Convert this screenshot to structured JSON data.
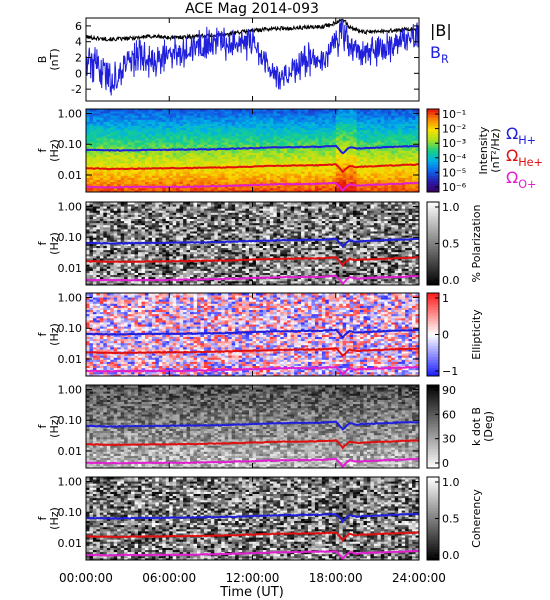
{
  "chart_data": {
    "type": "heatmap",
    "title": "ACE Mag 2014-093",
    "xlabel": "Time (UT)",
    "x_ticks": [
      "00:00:00",
      "06:00:00",
      "12:00:00",
      "18:00:00",
      "24:00:00"
    ],
    "x_range_hours": [
      0,
      24
    ],
    "panels": [
      {
        "id": "field",
        "type": "line",
        "ylabel": "B",
        "yunit": "(nT)",
        "ylim": [
          -3.5,
          7
        ],
        "y_ticks": [
          "-2",
          "0",
          "2",
          "4",
          "6"
        ],
        "legend": [
          {
            "label": "|B|",
            "color": "#000000"
          },
          {
            "label": "B",
            "sub": "R",
            "color": "#1f1fdc"
          }
        ],
        "series": [
          {
            "name": "|B|",
            "color": "#000000",
            "x": [
              0,
              1,
              2,
              3,
              4,
              5,
              6,
              7,
              8,
              9,
              10,
              11,
              12,
              13,
              14,
              15,
              16,
              17,
              18,
              18.5,
              19,
              20,
              21,
              22,
              23,
              24
            ],
            "y": [
              4.6,
              4.4,
              4.3,
              4.4,
              4.6,
              4.7,
              4.5,
              4.6,
              4.7,
              4.8,
              4.9,
              5.2,
              5.4,
              5.6,
              5.7,
              5.7,
              5.8,
              5.9,
              6.4,
              6.9,
              5.8,
              5.2,
              5.3,
              5.4,
              5.5,
              5.6
            ]
          },
          {
            "name": "B",
            "color": "#1f1fdc",
            "x": [
              0,
              1,
              2,
              3,
              4,
              5,
              6,
              7,
              8,
              9,
              10,
              11,
              12,
              13,
              14,
              15,
              16,
              17,
              18,
              18.5,
              19,
              20,
              21,
              22,
              23,
              24
            ],
            "y": [
              2.0,
              0.5,
              -1.0,
              1.5,
              2.5,
              1.0,
              2.5,
              3.0,
              3.5,
              3.8,
              4.0,
              3.5,
              4.2,
              1.0,
              -0.5,
              0.5,
              2.0,
              1.5,
              4.0,
              5.5,
              3.0,
              2.5,
              3.0,
              3.6,
              4.2,
              4.4
            ]
          }
        ]
      },
      {
        "id": "intensity",
        "type": "heatmap",
        "ylabel": "f",
        "yunit": "(Hz)",
        "ylim": [
          0.0028,
          1.4
        ],
        "y_scale": "log",
        "y_ticks": [
          "1.00",
          "0.10",
          "0.01"
        ],
        "colorbar": {
          "title": "Intensity",
          "unit": "(nT²/Hz)",
          "ticks": [
            "10⁻¹",
            "10⁻²",
            "10⁻³",
            "10⁻⁴",
            "10⁻⁵",
            "10⁻⁶"
          ],
          "range": [
            -6.5,
            -0.5
          ],
          "colors": [
            "#3a0060",
            "#2a1aa8",
            "#1060e8",
            "#00b0e8",
            "#18d088",
            "#a8e020",
            "#f8e000",
            "#f88800",
            "#e81010"
          ]
        },
        "curve_legend": [
          {
            "label": "Ω",
            "sub": "H+",
            "color": "#1f1fdc"
          },
          {
            "label": "Ω",
            "sub": "He+",
            "color": "#e01010"
          },
          {
            "label": "Ω",
            "sub": "O+",
            "color": "#e020d0"
          }
        ]
      },
      {
        "id": "polarization",
        "type": "heatmap",
        "ylabel": "f",
        "yunit": "(Hz)",
        "y_scale": "log",
        "y_ticks": [
          "1.00",
          "0.10",
          "0.01"
        ],
        "colorbar": {
          "title": "% Polarization",
          "ticks": [
            "1.0",
            "0.5",
            "0.0"
          ],
          "range": [
            0,
            1
          ],
          "colors": [
            "#000000",
            "#ffffff"
          ]
        }
      },
      {
        "id": "ellipticity",
        "type": "heatmap",
        "ylabel": "f",
        "yunit": "(Hz)",
        "y_scale": "log",
        "y_ticks": [
          "1.00",
          "0.10",
          "0.01"
        ],
        "colorbar": {
          "title": "Ellipticity",
          "ticks": [
            "1",
            "0",
            "−1"
          ],
          "range": [
            -1,
            1
          ],
          "colors": [
            "#1a1aff",
            "#ffffff",
            "#ff1a1a"
          ]
        }
      },
      {
        "id": "kdotb",
        "type": "heatmap",
        "ylabel": "f",
        "yunit": "(Hz)",
        "y_scale": "log",
        "y_ticks": [
          "1.00",
          "0.10",
          "0.01"
        ],
        "colorbar": {
          "title": "k dot B",
          "unit": "(Deg)",
          "ticks": [
            "90",
            "60",
            "30",
            "0"
          ],
          "range": [
            0,
            90
          ],
          "colors": [
            "#ffffff",
            "#000000"
          ]
        }
      },
      {
        "id": "coherency",
        "type": "heatmap",
        "ylabel": "f",
        "yunit": "(Hz)",
        "y_scale": "log",
        "y_ticks": [
          "1.00",
          "0.10",
          "0.01"
        ],
        "colorbar": {
          "title": "Coherency",
          "ticks": [
            "1.0",
            "0.5",
            "0.0"
          ],
          "range": [
            0,
            1
          ],
          "colors": [
            "#000000",
            "#ffffff"
          ]
        }
      }
    ],
    "cyclotron_curves": [
      {
        "name": "Ω",
        "sub": "H+",
        "color": "#1f1fdc",
        "x": [
          0,
          2,
          4,
          6,
          8,
          10,
          12,
          14,
          16,
          17,
          18,
          18.5,
          19,
          19.5,
          20,
          22,
          24
        ],
        "f_hz": [
          0.065,
          0.063,
          0.065,
          0.066,
          0.068,
          0.07,
          0.075,
          0.08,
          0.082,
          0.083,
          0.088,
          0.05,
          0.08,
          0.072,
          0.075,
          0.082,
          0.088
        ]
      },
      {
        "name": "Ω",
        "sub": "He+",
        "color": "#e01010",
        "x": [
          0,
          2,
          4,
          6,
          8,
          10,
          12,
          14,
          16,
          17,
          18,
          18.5,
          19,
          19.5,
          20,
          22,
          24
        ],
        "f_hz": [
          0.0165,
          0.0158,
          0.0162,
          0.0165,
          0.017,
          0.0175,
          0.0188,
          0.02,
          0.0205,
          0.0208,
          0.022,
          0.0125,
          0.02,
          0.018,
          0.0188,
          0.0205,
          0.022
        ]
      },
      {
        "name": "Ω",
        "sub": "O+",
        "color": "#e020d0",
        "x": [
          0,
          2,
          4,
          6,
          8,
          10,
          12,
          14,
          16,
          17,
          18,
          18.5,
          19,
          19.5,
          20,
          22,
          24
        ],
        "f_hz": [
          0.0041,
          0.004,
          0.0041,
          0.0041,
          0.0042,
          0.0044,
          0.0047,
          0.005,
          0.0051,
          0.0052,
          0.0055,
          0.0031,
          0.005,
          0.0045,
          0.0047,
          0.0051,
          0.0055
        ]
      }
    ]
  }
}
